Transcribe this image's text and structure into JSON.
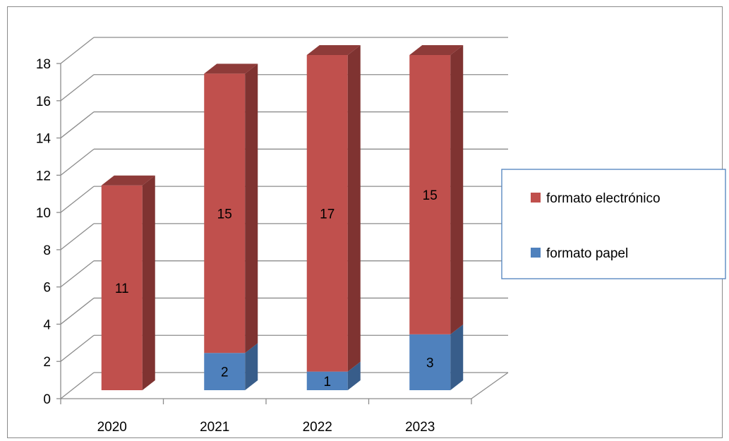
{
  "chart_data": {
    "type": "bar",
    "stacked": true,
    "three_d": true,
    "title": "",
    "xlabel": "",
    "ylabel": "",
    "categories": [
      "2020",
      "2021",
      "2022",
      "2023"
    ],
    "ylim": [
      0,
      18
    ],
    "yticks": [
      "0",
      "2",
      "4",
      "6",
      "8",
      "10",
      "12",
      "14",
      "16",
      "18"
    ],
    "grid": true,
    "legend_position": "right",
    "series": [
      {
        "name": "formato papel",
        "values": [
          0,
          2,
          1,
          3
        ],
        "labels": [
          "",
          "2",
          "1",
          "3"
        ],
        "color": "#4f81bd",
        "side_color": "#385d8a",
        "top_color": "#6f9bd1"
      },
      {
        "name": "formato electrónico",
        "values": [
          11,
          15,
          17,
          15
        ],
        "labels": [
          "11",
          "15",
          "17",
          "15"
        ],
        "color": "#c0504d",
        "side_color": "#7f3331",
        "top_color": "#8e3b39"
      }
    ],
    "legend": [
      "formato electrónico",
      "formato papel"
    ]
  }
}
